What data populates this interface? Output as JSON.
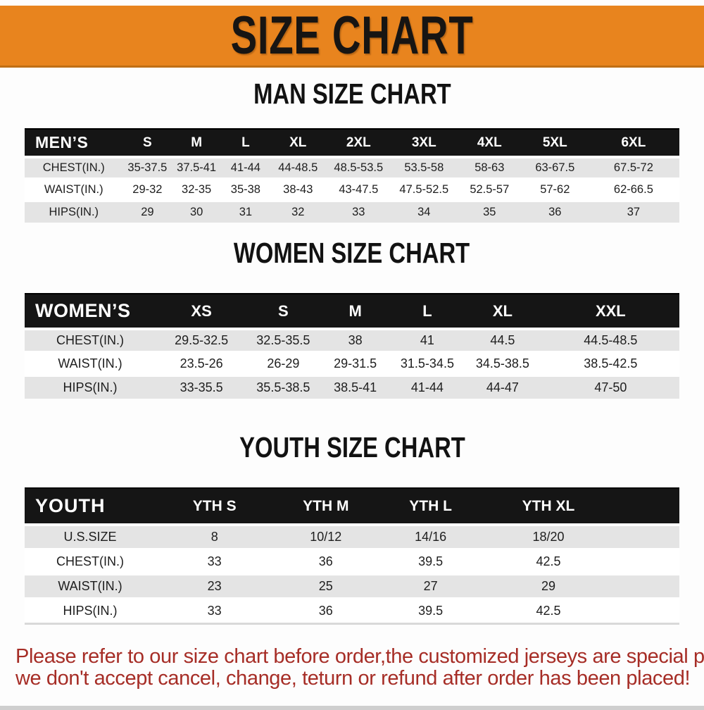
{
  "banner": {
    "title": "SIZE CHART"
  },
  "sections": {
    "men": {
      "title": "MAN SIZE CHART"
    },
    "women": {
      "title": "WOMEN SIZE CHART"
    },
    "youth": {
      "title": "YOUTH SIZE CHART"
    }
  },
  "tables": {
    "men": {
      "header": [
        "MEN’S",
        "S",
        "M",
        "L",
        "XL",
        "2XL",
        "3XL",
        "4XL",
        "5XL",
        "6XL"
      ],
      "rows": [
        [
          "CHEST(IN.)",
          "35-37.5",
          "37.5-41",
          "41-44",
          "44-48.5",
          "48.5-53.5",
          "53.5-58",
          "58-63",
          "63-67.5",
          "67.5-72"
        ],
        [
          "WAIST(IN.)",
          "29-32",
          "32-35",
          "35-38",
          "38-43",
          "43-47.5",
          "47.5-52.5",
          "52.5-57",
          "57-62",
          "62-66.5"
        ],
        [
          "HIPS(IN.)",
          "29",
          "30",
          "31",
          "32",
          "33",
          "34",
          "35",
          "36",
          "37"
        ]
      ]
    },
    "women": {
      "header": [
        "WOMEN’S",
        "XS",
        "S",
        "M",
        "L",
        "XL",
        "XXL"
      ],
      "rows": [
        [
          "CHEST(IN.)",
          "29.5-32.5",
          "32.5-35.5",
          "38",
          "41",
          "44.5",
          "44.5-48.5"
        ],
        [
          "WAIST(IN.)",
          "23.5-26",
          "26-29",
          "29-31.5",
          "31.5-34.5",
          "34.5-38.5",
          "38.5-42.5"
        ],
        [
          "HIPS(IN.)",
          "33-35.5",
          "35.5-38.5",
          "38.5-41",
          "41-44",
          "44-47",
          "47-50"
        ]
      ]
    },
    "youth": {
      "header": [
        "YOUTH",
        "YTH S",
        "YTH M",
        "YTH L",
        "YTH XL",
        ""
      ],
      "rows": [
        [
          "U.S.SIZE",
          "8",
          "10/12",
          "14/16",
          "18/20",
          ""
        ],
        [
          "CHEST(IN.)",
          "33",
          "36",
          "39.5",
          "42.5",
          ""
        ],
        [
          "WAIST(IN.)",
          "23",
          "25",
          "27",
          "29",
          ""
        ],
        [
          "HIPS(IN.)",
          "33",
          "36",
          "39.5",
          "42.5",
          ""
        ]
      ]
    }
  },
  "footer": {
    "line1": "Please refer to our size chart before order,the customized jerseys are special products,",
    "line2": "we don't accept cancel, change, teturn or refund after order has been placed!"
  },
  "colors": {
    "banner_orange": "#E8841E",
    "header_black": "#151515",
    "row_gray": "#E4E4E4",
    "footer_red": "#A62D26"
  }
}
